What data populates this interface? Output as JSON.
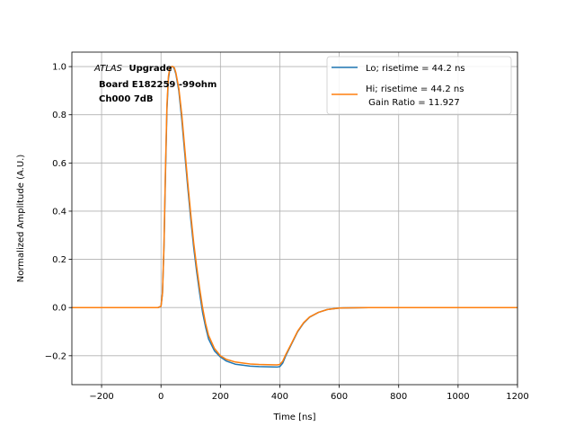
{
  "chart_data": {
    "type": "line",
    "xlabel": "Time [ns]",
    "ylabel": "Normalized Amplitude (A.U.)",
    "xlim": [
      -300,
      1200
    ],
    "ylim": [
      -0.32,
      1.06
    ],
    "xticks": [
      -200,
      0,
      200,
      400,
      600,
      800,
      1000,
      1200
    ],
    "yticks": [
      -0.2,
      0.0,
      0.2,
      0.4,
      0.6,
      0.8,
      1.0
    ],
    "xtick_labels": [
      "−200",
      "0",
      "200",
      "400",
      "600",
      "800",
      "1000",
      "1200"
    ],
    "ytick_labels": [
      "−0.2",
      "0.0",
      "0.2",
      "0.4",
      "0.6",
      "0.8",
      "1.0"
    ],
    "grid": true,
    "legend_position": "top-right",
    "annotation": {
      "italic": "ATLAS",
      "bold": "Upgrade",
      "line2": "Board E182259 -99ohm",
      "line3": "Ch000 7dB"
    },
    "series": [
      {
        "name": "Lo; risetime = 44.2 ns",
        "color": "#1f77b4",
        "x": [
          -300,
          -100,
          -10,
          0,
          5,
          10,
          15,
          20,
          25,
          30,
          35,
          40,
          45,
          50,
          60,
          70,
          80,
          90,
          100,
          110,
          120,
          130,
          140,
          150,
          160,
          180,
          200,
          220,
          250,
          280,
          300,
          330,
          360,
          390,
          400,
          410,
          420,
          440,
          460,
          480,
          500,
          530,
          560,
          600,
          700,
          800,
          1000,
          1200
        ],
        "y": [
          0.0,
          0.0,
          0.0,
          0.005,
          0.06,
          0.25,
          0.55,
          0.82,
          0.95,
          0.99,
          1.0,
          1.0,
          0.99,
          0.97,
          0.9,
          0.78,
          0.64,
          0.5,
          0.37,
          0.25,
          0.15,
          0.06,
          -0.02,
          -0.08,
          -0.13,
          -0.18,
          -0.205,
          -0.222,
          -0.235,
          -0.24,
          -0.243,
          -0.245,
          -0.246,
          -0.247,
          -0.245,
          -0.23,
          -0.2,
          -0.15,
          -0.1,
          -0.065,
          -0.04,
          -0.02,
          -0.008,
          -0.002,
          0.0,
          0.0,
          0.0,
          0.0
        ]
      },
      {
        "name": "Hi; risetime = 44.2 ns\n Gain Ratio = 11.927",
        "color": "#ff7f0e",
        "x": [
          -300,
          -100,
          -10,
          0,
          5,
          10,
          15,
          20,
          25,
          30,
          35,
          40,
          45,
          50,
          60,
          70,
          80,
          90,
          100,
          110,
          120,
          130,
          140,
          150,
          160,
          180,
          200,
          220,
          250,
          280,
          300,
          330,
          360,
          390,
          400,
          410,
          420,
          440,
          460,
          480,
          500,
          530,
          560,
          600,
          700,
          800,
          1000,
          1200
        ],
        "y": [
          0.0,
          0.0,
          0.0,
          0.005,
          0.06,
          0.26,
          0.57,
          0.84,
          0.96,
          0.995,
          1.0,
          1.0,
          0.995,
          0.975,
          0.91,
          0.8,
          0.66,
          0.52,
          0.39,
          0.27,
          0.17,
          0.08,
          0.0,
          -0.065,
          -0.115,
          -0.17,
          -0.2,
          -0.215,
          -0.226,
          -0.231,
          -0.234,
          -0.236,
          -0.237,
          -0.238,
          -0.236,
          -0.222,
          -0.195,
          -0.147,
          -0.098,
          -0.063,
          -0.039,
          -0.02,
          -0.008,
          -0.002,
          0.0,
          0.0,
          0.0,
          0.0
        ]
      }
    ]
  }
}
